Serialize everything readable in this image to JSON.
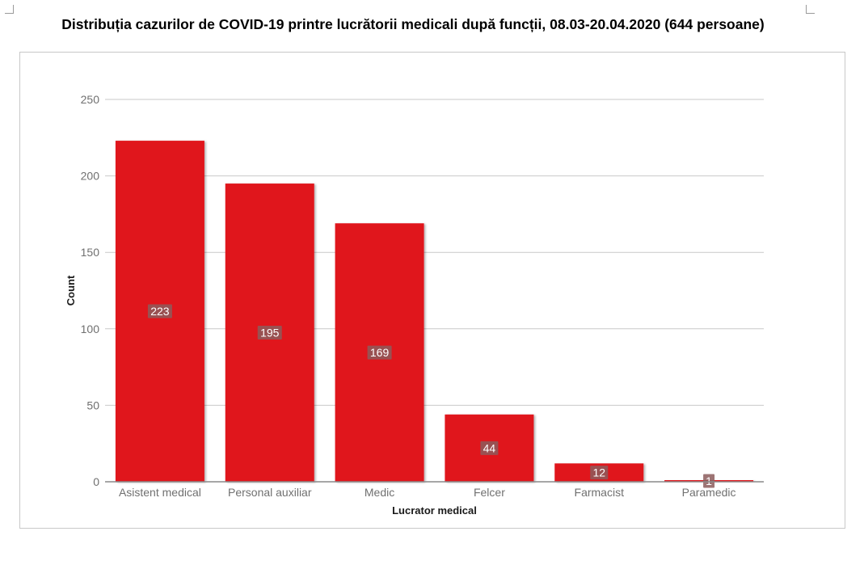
{
  "page": {
    "title": "Distribuția cazurilor de COVID-19 printre lucrătorii medicali după funcții, 08.03-20.04.2020 (644 persoane)"
  },
  "chart_data": {
    "type": "bar",
    "title": "",
    "xlabel": "Lucrator medical",
    "ylabel": "Count",
    "categories": [
      "Asistent medical",
      "Personal auxiliar",
      "Medic",
      "Felcer",
      "Farmacist",
      "Paramedic"
    ],
    "values": [
      223,
      195,
      169,
      44,
      12,
      1
    ],
    "data_labels": [
      "223",
      "195",
      "169",
      "44",
      "12",
      "1"
    ],
    "ylim": [
      0,
      250
    ],
    "yticks": [
      0,
      50,
      100,
      150,
      200,
      250
    ],
    "ytick_labels": [
      "0",
      "50",
      "100",
      "150",
      "200",
      "250"
    ],
    "grid": true,
    "legend": "none",
    "bar_color": "#e0161e",
    "label_bg_color": "#8c5c5c"
  }
}
